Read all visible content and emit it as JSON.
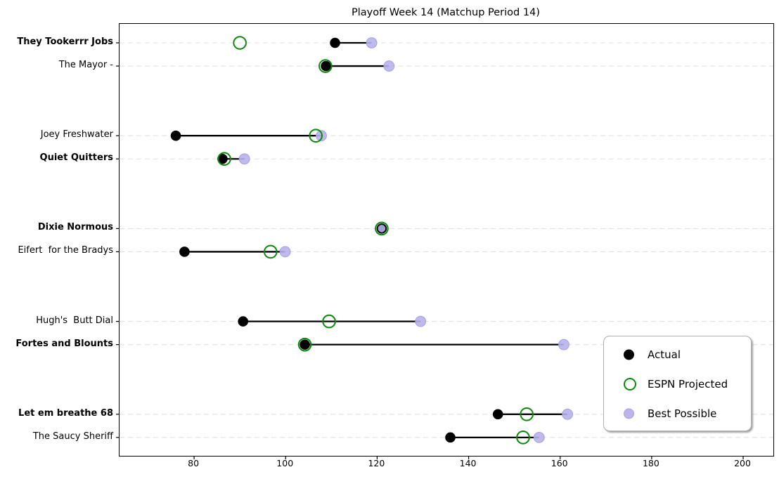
{
  "chart_data": {
    "type": "scatter",
    "variant": "dumbbell",
    "title": "Playoff Week 14 (Matchup Period 14)",
    "xlabel": "",
    "ylabel": "",
    "x_ticks": [
      80,
      100,
      120,
      140,
      160,
      180,
      200
    ],
    "xlim": [
      63.7,
      206.6
    ],
    "grid": {
      "horizontal": true,
      "style": "dashed"
    },
    "connector": "actual-to-best-possible",
    "legend": {
      "position": "lower right",
      "entries": [
        {
          "id": "actual",
          "label": "Actual"
        },
        {
          "id": "espn",
          "label": "ESPN Projected"
        },
        {
          "id": "best",
          "label": "Best Possible"
        }
      ]
    },
    "colors": {
      "actual": "#000000",
      "espn": "#0a8a0a",
      "best": "#b8b2ec",
      "best_edge": "#a49ee0",
      "grid": "#e0e0e0"
    },
    "teams": [
      {
        "name": "They Tookerrr Jobs",
        "bold": true,
        "actual": 110.8,
        "espn_projected": 90.0,
        "best_possible": 118.8
      },
      {
        "name": "The Mayor -",
        "bold": false,
        "actual": 108.8,
        "espn_projected": 108.7,
        "best_possible": 122.6
      },
      {
        "name": "Joey Freshwater",
        "bold": false,
        "actual": 76.0,
        "espn_projected": 106.6,
        "best_possible": 107.8
      },
      {
        "name": "Quiet Quitters",
        "bold": true,
        "actual": 86.2,
        "espn_projected": 86.6,
        "best_possible": 91.0
      },
      {
        "name": "Dixie Normous",
        "bold": true,
        "actual": 121.0,
        "espn_projected": 121.0,
        "best_possible": 121.0
      },
      {
        "name": "Eifert  for the Bradys",
        "bold": false,
        "actual": 77.9,
        "espn_projected": 96.7,
        "best_possible": 99.9
      },
      {
        "name": "Hugh's  Butt Dial",
        "bold": false,
        "actual": 90.7,
        "espn_projected": 109.5,
        "best_possible": 129.5
      },
      {
        "name": "Fortes and Blounts",
        "bold": true,
        "actual": 104.2,
        "espn_projected": 104.2,
        "best_possible": 160.8
      },
      {
        "name": "Let em breathe 68",
        "bold": true,
        "actual": 146.4,
        "espn_projected": 152.7,
        "best_possible": 161.6
      },
      {
        "name": "The Saucy Sheriff",
        "bold": false,
        "actual": 136.0,
        "espn_projected": 151.9,
        "best_possible": 155.4
      }
    ]
  }
}
